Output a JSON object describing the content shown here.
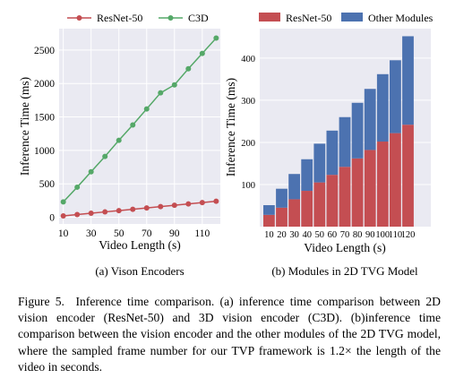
{
  "figure": {
    "caption_label": "Figure 5.",
    "caption_text": "Inference time comparison. (a) inference time comparison between 2D vision encoder (ResNet-50) and 3D vision encoder (C3D). (b)inference time comparison between the vision encoder and the other modules of the 2D TVG model, where the sampled frame number for our TVP framework is 1.2× the length of the video in seconds."
  },
  "colors": {
    "resnet_line": "#c44e52",
    "c3d_line": "#55a868",
    "resnet_bar": "#c44e52",
    "other_bar": "#4c72b0",
    "plot_bg": "#eaeaf2",
    "grid": "#ffffff"
  },
  "chart_data": [
    {
      "type": "line",
      "subtitle": "(a) Vison Encoders",
      "xlabel": "Video Length (s)",
      "ylabel": "Inference Time (ms)",
      "x": [
        10,
        20,
        30,
        40,
        50,
        60,
        70,
        80,
        90,
        100,
        110,
        120
      ],
      "xticks": [
        10,
        30,
        50,
        70,
        90,
        110
      ],
      "yticks": [
        0,
        500,
        1000,
        1500,
        2000,
        2500
      ],
      "xlim": [
        7,
        123
      ],
      "ylim": [
        -100,
        2820
      ],
      "grid": true,
      "legend": "top",
      "series": [
        {
          "name": "ResNet-50",
          "values": [
            20,
            40,
            60,
            80,
            100,
            120,
            140,
            160,
            180,
            200,
            220,
            240
          ]
        },
        {
          "name": "C3D",
          "values": [
            230,
            450,
            680,
            910,
            1150,
            1380,
            1620,
            1860,
            1980,
            2220,
            2450,
            2680
          ]
        }
      ]
    },
    {
      "type": "bar",
      "stacked": true,
      "subtitle": "(b) Modules in 2D TVG Model",
      "xlabel": "Video Length (s)",
      "ylabel": "Inference Time (ms)",
      "categories": [
        "10",
        "20",
        "30",
        "40",
        "50",
        "60",
        "70",
        "80",
        "90",
        "100",
        "110",
        "120"
      ],
      "yticks": [
        100,
        200,
        300,
        400
      ],
      "ylim": [
        0,
        470
      ],
      "grid": true,
      "legend": "top",
      "series": [
        {
          "name": "ResNet-50",
          "values": [
            28,
            45,
            65,
            85,
            105,
            123,
            142,
            162,
            182,
            202,
            222,
            242
          ]
        },
        {
          "name": "Other Modules",
          "values": [
            23,
            45,
            60,
            75,
            92,
            105,
            118,
            132,
            145,
            160,
            173,
            210
          ]
        }
      ]
    }
  ]
}
